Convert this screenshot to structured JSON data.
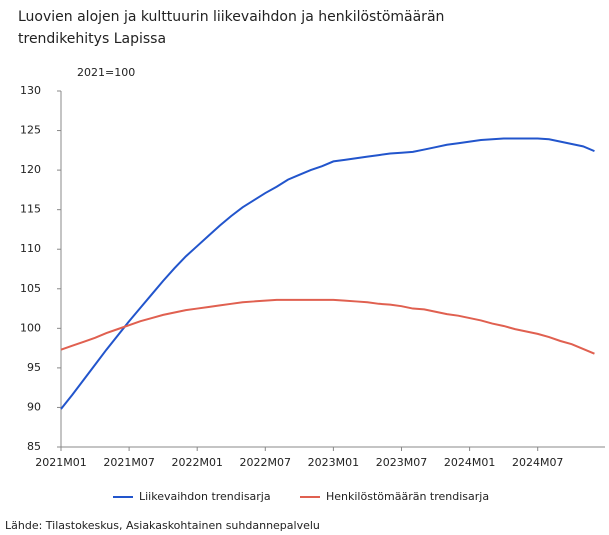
{
  "chart_data": {
    "type": "line",
    "title": [
      "Luovien alojen ja kulttuurin liikevaihdon ja henkilöstömäärän",
      "trendikehitys Lapissa"
    ],
    "unit_label": "2021=100",
    "source": "Lähde: Tilastokeskus, Asiakaskohtainen suhdannepalvelu",
    "categories": [
      "2021M01",
      null,
      null,
      null,
      null,
      null,
      "2021M07",
      null,
      null,
      null,
      null,
      null,
      "2022M01",
      null,
      null,
      null,
      null,
      null,
      "2022M07",
      null,
      null,
      null,
      null,
      null,
      "2023M01",
      null,
      null,
      null,
      null,
      null,
      "2023M07",
      null,
      null,
      null,
      null,
      null,
      "2024M01",
      null,
      null,
      null,
      null,
      null,
      "2024M07",
      null,
      null,
      null,
      null,
      null
    ],
    "series": [
      {
        "name": "Liikevaihdon trendisarja",
        "color": "#2255cc",
        "values": [
          89.8,
          91.6,
          93.5,
          95.4,
          97.3,
          99.1,
          100.9,
          102.6,
          104.3,
          106.0,
          107.6,
          109.1,
          110.4,
          111.7,
          113.0,
          114.2,
          115.3,
          116.2,
          117.1,
          117.9,
          118.8,
          119.4,
          120.0,
          120.5,
          121.1,
          121.3,
          121.5,
          121.7,
          121.9,
          122.1,
          122.2,
          122.3,
          122.6,
          122.9,
          123.2,
          123.4,
          123.6,
          123.8,
          123.9,
          124.0,
          124.0,
          124.0,
          124.0,
          123.9,
          123.6,
          123.3,
          123.0,
          122.4
        ]
      },
      {
        "name": "Henkilöstömäärän trendisarja",
        "color": "#e06050",
        "values": [
          97.3,
          97.8,
          98.3,
          98.8,
          99.4,
          99.9,
          100.4,
          100.9,
          101.3,
          101.7,
          102.0,
          102.3,
          102.5,
          102.7,
          102.9,
          103.1,
          103.3,
          103.4,
          103.5,
          103.6,
          103.6,
          103.6,
          103.6,
          103.6,
          103.6,
          103.5,
          103.4,
          103.3,
          103.1,
          103.0,
          102.8,
          102.5,
          102.4,
          102.1,
          101.8,
          101.6,
          101.3,
          101.0,
          100.6,
          100.3,
          99.9,
          99.6,
          99.3,
          98.9,
          98.4,
          98.0,
          97.4,
          96.8
        ]
      }
    ],
    "ylim": [
      85,
      130
    ],
    "yticks": [
      85,
      90,
      95,
      100,
      105,
      110,
      115,
      120,
      125,
      130
    ],
    "grid": false
  }
}
